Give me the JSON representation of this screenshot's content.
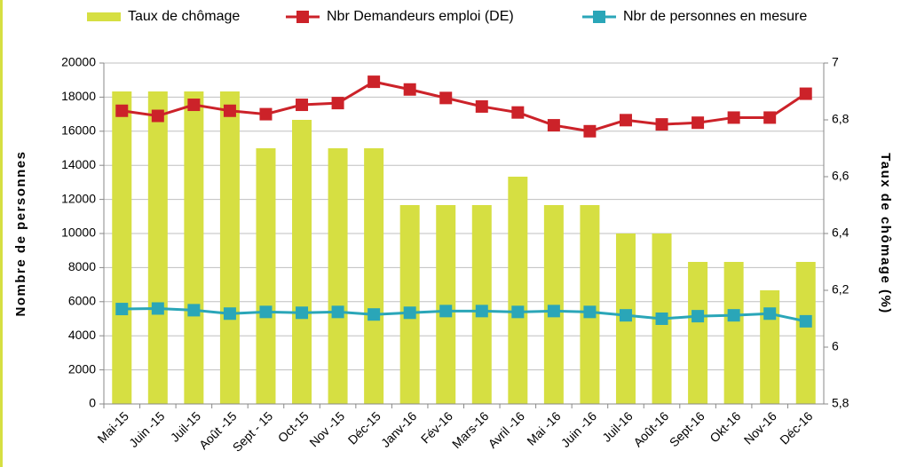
{
  "chart_data": {
    "type": "combo",
    "categories": [
      "Mai-15",
      "Juin -15",
      "Juil-15",
      "Août -15",
      "Sept - 15",
      "Oct-15",
      "Nov -15",
      "Déc-15",
      "Janv-16",
      "Fév-16",
      "Mars-16",
      "Avril -16",
      "Mai -16",
      "Juin -16",
      "Juil-16",
      "Août-16",
      "Sept-16",
      "Okt-16",
      "Nov-16",
      "Déc-16"
    ],
    "series": [
      {
        "name": "Taux de chômage",
        "type": "bar",
        "axis": "y2",
        "color": "#d6df42",
        "values": [
          6.9,
          6.9,
          6.9,
          6.9,
          6.7,
          6.8,
          6.7,
          6.7,
          6.5,
          6.5,
          6.5,
          6.6,
          6.5,
          6.5,
          6.4,
          6.4,
          6.3,
          6.3,
          6.2,
          6.3
        ]
      },
      {
        "name": "Nbr Demandeurs emploi (DE)",
        "type": "line",
        "color": "#cc2229",
        "values": [
          17200,
          16900,
          17550,
          17200,
          17000,
          17550,
          17650,
          18900,
          18450,
          17950,
          17450,
          17100,
          16350,
          16000,
          16650,
          16400,
          16500,
          16800,
          16800,
          18200
        ]
      },
      {
        "name": "Nbr de personnes en mesure",
        "type": "line",
        "color": "#2aa6b8",
        "values": [
          5570,
          5600,
          5500,
          5300,
          5400,
          5350,
          5400,
          5250,
          5350,
          5450,
          5450,
          5400,
          5450,
          5400,
          5200,
          5000,
          5150,
          5200,
          5300,
          4850
        ]
      }
    ],
    "ylabel": "Nombre de personnes",
    "y2label": "Taux de chômage (%)",
    "ylim": [
      0,
      20000
    ],
    "yticks": [
      0,
      2000,
      4000,
      6000,
      8000,
      10000,
      12000,
      14000,
      16000,
      18000,
      20000
    ],
    "y2lim": [
      5.8,
      7
    ],
    "y2ticks": [
      {
        "value": 5.8,
        "label": "5,8"
      },
      6,
      {
        "value": 6.2,
        "label": "6,2"
      },
      {
        "value": 6.4,
        "label": "6,4"
      },
      {
        "value": 6.6,
        "label": "6,6"
      },
      {
        "value": 6.8,
        "label": "6,8"
      },
      7
    ],
    "grid": true,
    "legend": "top"
  }
}
